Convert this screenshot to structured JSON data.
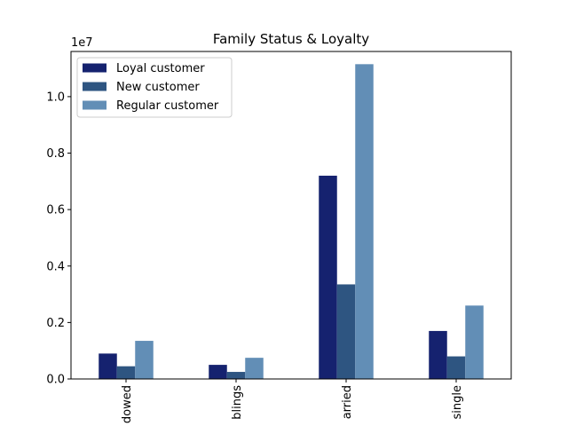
{
  "chart_data": {
    "type": "bar",
    "title": "Family Status & Loyalty",
    "categories": [
      "dowed",
      "blings",
      "arried",
      "single"
    ],
    "series": [
      {
        "name": "Loyal customer",
        "values": [
          0.09,
          0.05,
          0.72,
          0.17
        ]
      },
      {
        "name": "New customer",
        "values": [
          0.045,
          0.025,
          0.335,
          0.08
        ]
      },
      {
        "name": "Regular customer",
        "values": [
          0.135,
          0.075,
          1.115,
          0.26
        ]
      }
    ],
    "colors": [
      "#15226f",
      "#2e5581",
      "#628eb6"
    ],
    "ylim": [
      0,
      1.16
    ],
    "yticks": [
      0.0,
      0.2,
      0.4,
      0.6,
      0.8,
      1.0
    ],
    "ytick_labels": [
      "0.0",
      "0.2",
      "0.4",
      "0.6",
      "0.8",
      "1.0"
    ],
    "y_offset_label": "1e7",
    "xtick_rotation": 90,
    "legend_placement": "upper left",
    "grid": false
  }
}
